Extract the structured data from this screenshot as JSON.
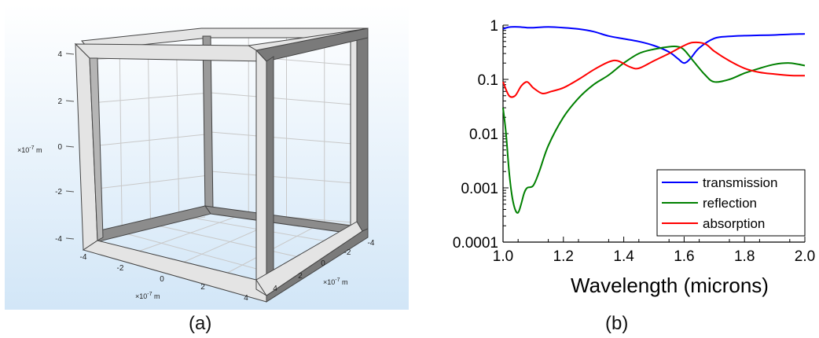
{
  "panel_a": {
    "caption": "(a)",
    "vertical_axis": {
      "ticks": [
        "4",
        "2",
        "0",
        "-2",
        "-4"
      ],
      "unit_label": "×10",
      "unit_exp": "-7",
      "unit_suffix": " m"
    },
    "left_axis": {
      "ticks": [
        "-4",
        "-2",
        "0",
        "2",
        "4"
      ],
      "unit_label": "×10",
      "unit_exp": "-7",
      "unit_suffix": " m"
    },
    "right_axis": {
      "ticks": [
        "4",
        "2",
        "0",
        "-2",
        "-4"
      ],
      "unit_label": "×10",
      "unit_exp": "-7",
      "unit_suffix": " m"
    },
    "colors": {
      "background_top": "#ffffff",
      "background_bottom": "#d2e6f7",
      "frame_light": "#e4e4e4",
      "frame_dark": "#7a7a7a",
      "grid": "#c8c8c8"
    }
  },
  "chart_data": {
    "type": "line",
    "caption": "(b)",
    "xlabel": "Wavelength (microns)",
    "ylabel": "",
    "xlim": [
      1.0,
      2.0
    ],
    "ylim": [
      0.0001,
      1
    ],
    "yscale": "log",
    "xticks": [
      "1.0",
      "1.2",
      "1.4",
      "1.6",
      "1.8",
      "2.0"
    ],
    "yticks": [
      "1",
      "0.1",
      "0.01",
      "0.001",
      "0.0001"
    ],
    "legend_position": "bottom-right",
    "series": [
      {
        "name": "transmission",
        "color": "#0000ff",
        "points": [
          [
            1.0,
            0.85
          ],
          [
            1.02,
            0.92
          ],
          [
            1.05,
            0.93
          ],
          [
            1.08,
            0.9
          ],
          [
            1.1,
            0.9
          ],
          [
            1.15,
            0.93
          ],
          [
            1.2,
            0.9
          ],
          [
            1.25,
            0.85
          ],
          [
            1.3,
            0.76
          ],
          [
            1.35,
            0.63
          ],
          [
            1.4,
            0.56
          ],
          [
            1.45,
            0.5
          ],
          [
            1.5,
            0.42
          ],
          [
            1.55,
            0.32
          ],
          [
            1.58,
            0.24
          ],
          [
            1.6,
            0.2
          ],
          [
            1.62,
            0.24
          ],
          [
            1.65,
            0.38
          ],
          [
            1.7,
            0.57
          ],
          [
            1.75,
            0.62
          ],
          [
            1.8,
            0.64
          ],
          [
            1.85,
            0.65
          ],
          [
            1.9,
            0.66
          ],
          [
            1.95,
            0.68
          ],
          [
            2.0,
            0.69
          ]
        ]
      },
      {
        "name": "reflection",
        "color": "#008000",
        "points": [
          [
            1.0,
            0.03
          ],
          [
            1.01,
            0.01
          ],
          [
            1.02,
            0.002
          ],
          [
            1.03,
            0.0007
          ],
          [
            1.04,
            0.0004
          ],
          [
            1.05,
            0.00035
          ],
          [
            1.06,
            0.0005
          ],
          [
            1.07,
            0.0008
          ],
          [
            1.08,
            0.001
          ],
          [
            1.1,
            0.0011
          ],
          [
            1.12,
            0.002
          ],
          [
            1.15,
            0.006
          ],
          [
            1.2,
            0.02
          ],
          [
            1.25,
            0.045
          ],
          [
            1.3,
            0.08
          ],
          [
            1.35,
            0.12
          ],
          [
            1.4,
            0.2
          ],
          [
            1.45,
            0.3
          ],
          [
            1.5,
            0.36
          ],
          [
            1.55,
            0.4
          ],
          [
            1.58,
            0.4
          ],
          [
            1.6,
            0.35
          ],
          [
            1.63,
            0.22
          ],
          [
            1.67,
            0.12
          ],
          [
            1.7,
            0.09
          ],
          [
            1.75,
            0.1
          ],
          [
            1.8,
            0.13
          ],
          [
            1.85,
            0.16
          ],
          [
            1.9,
            0.19
          ],
          [
            1.95,
            0.2
          ],
          [
            2.0,
            0.18
          ]
        ]
      },
      {
        "name": "absorption",
        "color": "#ff0000",
        "points": [
          [
            1.0,
            0.09
          ],
          [
            1.02,
            0.05
          ],
          [
            1.04,
            0.05
          ],
          [
            1.06,
            0.075
          ],
          [
            1.08,
            0.09
          ],
          [
            1.1,
            0.07
          ],
          [
            1.13,
            0.055
          ],
          [
            1.16,
            0.06
          ],
          [
            1.2,
            0.07
          ],
          [
            1.25,
            0.1
          ],
          [
            1.3,
            0.15
          ],
          [
            1.35,
            0.21
          ],
          [
            1.38,
            0.22
          ],
          [
            1.42,
            0.17
          ],
          [
            1.45,
            0.16
          ],
          [
            1.5,
            0.22
          ],
          [
            1.55,
            0.3
          ],
          [
            1.6,
            0.42
          ],
          [
            1.63,
            0.48
          ],
          [
            1.67,
            0.45
          ],
          [
            1.7,
            0.33
          ],
          [
            1.75,
            0.22
          ],
          [
            1.8,
            0.16
          ],
          [
            1.85,
            0.135
          ],
          [
            1.9,
            0.125
          ],
          [
            1.95,
            0.118
          ],
          [
            2.0,
            0.117
          ]
        ]
      }
    ]
  }
}
